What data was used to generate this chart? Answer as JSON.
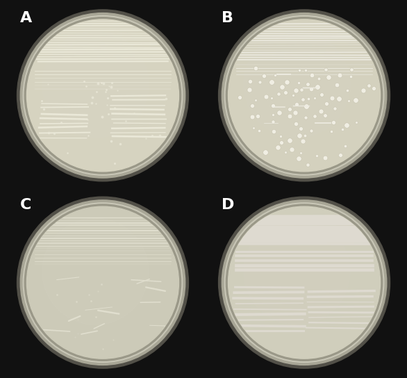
{
  "fig_width": 5.86,
  "fig_height": 5.44,
  "dpi": 100,
  "background_color": "#111111",
  "panels": [
    "A",
    "B",
    "C",
    "D"
  ],
  "label_color": "#ffffff",
  "label_fontsize": 16,
  "label_fontweight": "bold",
  "agar_color_A": "#d6d3c0",
  "agar_color_B": "#d4d1be",
  "agar_color_C": "#cccab8",
  "agar_color_D": "#d0cebc",
  "rim_outer": "#6a6860",
  "rim_mid": "#9a9888",
  "rim_inner": "#b8b6a6",
  "streak_color_A": "#eae8d8",
  "streak_color_B": "#eceae0",
  "streak_color_C": "#e0dece",
  "streak_color_D": "#dedad0",
  "dot_color_B": "#f2f0e6"
}
